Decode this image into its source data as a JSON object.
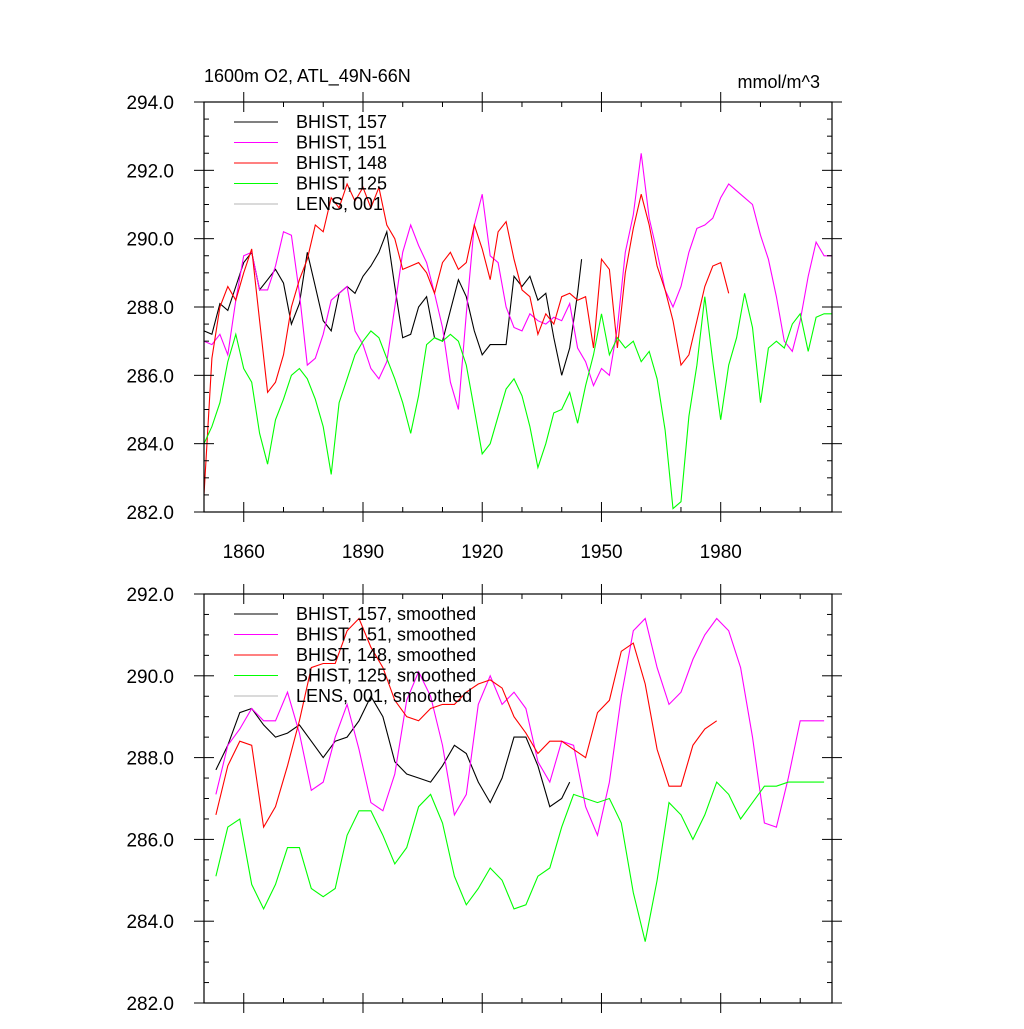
{
  "chart_data": [
    {
      "type": "line",
      "title": "1600m O2, ATL_49N-66N",
      "units": "mmol/m^3",
      "xlim": [
        1850,
        2008
      ],
      "ylim": [
        282.0,
        294.0
      ],
      "x_ticks": [
        1860,
        1890,
        1920,
        1950,
        1980
      ],
      "x_tick_labels": [
        "1860",
        "1890",
        "1920",
        "1950",
        "1980"
      ],
      "y_ticks": [
        282.0,
        284.0,
        286.0,
        288.0,
        290.0,
        292.0,
        294.0
      ],
      "y_tick_labels": [
        "282.0",
        "284.0",
        "286.0",
        "288.0",
        "290.0",
        "292.0",
        "294.0"
      ],
      "grid": false,
      "legend_position": "top-left",
      "series": [
        {
          "name": "BHIST, 157",
          "color": "#000000",
          "x": [
            1850,
            1852,
            1854,
            1856,
            1858,
            1860,
            1862,
            1864,
            1866,
            1868,
            1870,
            1872,
            1874,
            1876,
            1878,
            1880,
            1882,
            1884,
            1886,
            1888,
            1890,
            1892,
            1894,
            1896,
            1898,
            1900,
            1902,
            1904,
            1906,
            1908,
            1910,
            1912,
            1914,
            1916,
            1918,
            1920,
            1922,
            1924,
            1926,
            1928,
            1930,
            1932,
            1934,
            1936,
            1938,
            1940,
            1942,
            1944,
            1945
          ],
          "y": [
            287.3,
            287.2,
            288.1,
            287.9,
            288.6,
            289.3,
            289.6,
            288.5,
            288.8,
            289.1,
            288.7,
            287.5,
            288.1,
            289.6,
            288.6,
            287.6,
            287.3,
            288.4,
            288.6,
            288.4,
            288.9,
            289.2,
            289.6,
            290.2,
            288.6,
            287.1,
            287.2,
            288.0,
            288.3,
            287.1,
            287.0,
            287.9,
            288.8,
            288.3,
            287.3,
            286.6,
            286.9,
            286.9,
            286.9,
            288.9,
            288.6,
            288.9,
            288.2,
            288.4,
            287.1,
            286.0,
            286.8,
            288.4,
            289.4
          ]
        },
        {
          "name": "BHIST, 151",
          "color": "#ff00ff",
          "x": [
            1850,
            1852,
            1854,
            1856,
            1858,
            1860,
            1862,
            1864,
            1866,
            1868,
            1870,
            1872,
            1874,
            1876,
            1878,
            1880,
            1882,
            1884,
            1886,
            1888,
            1890,
            1892,
            1894,
            1896,
            1898,
            1900,
            1902,
            1904,
            1906,
            1908,
            1910,
            1912,
            1914,
            1916,
            1918,
            1920,
            1922,
            1924,
            1926,
            1928,
            1930,
            1932,
            1934,
            1936,
            1938,
            1940,
            1942,
            1944,
            1946,
            1948,
            1950,
            1952,
            1954,
            1956,
            1958,
            1960,
            1962,
            1964,
            1966,
            1968,
            1970,
            1972,
            1974,
            1976,
            1978,
            1980,
            1982,
            1984,
            1986,
            1988,
            1990,
            1992,
            1994,
            1996,
            1998,
            2000,
            2002,
            2004,
            2006,
            2008
          ],
          "y": [
            287.0,
            286.9,
            287.2,
            286.6,
            288.2,
            289.5,
            289.6,
            288.5,
            288.5,
            289.2,
            290.2,
            290.1,
            288.4,
            286.3,
            286.5,
            287.2,
            288.2,
            288.4,
            288.6,
            287.3,
            286.9,
            286.2,
            285.9,
            286.4,
            288.0,
            289.6,
            290.4,
            289.8,
            289.3,
            288.4,
            287.4,
            285.8,
            285.0,
            287.8,
            290.4,
            291.3,
            289.5,
            289.3,
            288.0,
            287.4,
            287.3,
            287.8,
            287.6,
            287.5,
            287.7,
            287.6,
            288.1,
            286.8,
            286.4,
            285.7,
            286.2,
            286.0,
            287.4,
            289.6,
            290.7,
            292.5,
            290.6,
            289.6,
            288.5,
            288.0,
            288.6,
            289.6,
            290.3,
            290.4,
            290.6,
            291.2,
            291.6,
            291.4,
            291.2,
            291.0,
            290.1,
            289.4,
            288.3,
            287.0,
            286.7,
            287.6,
            288.9,
            289.9,
            289.5,
            289.5
          ]
        },
        {
          "name": "BHIST, 148",
          "color": "#ff0000",
          "x": [
            1850,
            1852,
            1854,
            1856,
            1858,
            1860,
            1862,
            1864,
            1866,
            1868,
            1870,
            1872,
            1874,
            1876,
            1878,
            1880,
            1882,
            1884,
            1886,
            1888,
            1890,
            1892,
            1894,
            1896,
            1898,
            1900,
            1902,
            1904,
            1906,
            1908,
            1910,
            1912,
            1914,
            1916,
            1918,
            1920,
            1922,
            1924,
            1926,
            1928,
            1930,
            1932,
            1934,
            1936,
            1938,
            1940,
            1942,
            1944,
            1946,
            1948,
            1950,
            1952,
            1954,
            1956,
            1958,
            1960,
            1962,
            1964,
            1966,
            1968,
            1970,
            1972,
            1974,
            1976,
            1978,
            1980,
            1982
          ],
          "y": [
            282.5,
            286.5,
            288.0,
            288.6,
            288.2,
            289.0,
            289.7,
            287.6,
            285.5,
            285.8,
            286.6,
            288.0,
            288.8,
            289.4,
            290.4,
            290.2,
            291.2,
            290.9,
            291.6,
            291.1,
            291.5,
            290.9,
            291.5,
            290.4,
            290.0,
            289.1,
            289.2,
            289.3,
            289.0,
            288.4,
            289.3,
            289.6,
            289.1,
            289.3,
            290.4,
            289.7,
            288.8,
            290.2,
            290.5,
            289.4,
            288.5,
            288.3,
            287.2,
            287.8,
            287.5,
            288.3,
            288.4,
            288.2,
            288.3,
            286.8,
            289.4,
            289.1,
            286.8,
            289.0,
            290.3,
            291.3,
            290.4,
            289.2,
            288.5,
            287.6,
            286.3,
            286.6,
            287.6,
            288.6,
            289.2,
            289.3,
            288.4
          ]
        },
        {
          "name": "BHIST, 125",
          "color": "#00ff00",
          "x": [
            1850,
            1852,
            1854,
            1856,
            1858,
            1860,
            1862,
            1864,
            1866,
            1868,
            1870,
            1872,
            1874,
            1876,
            1878,
            1880,
            1882,
            1884,
            1886,
            1888,
            1890,
            1892,
            1894,
            1896,
            1898,
            1900,
            1902,
            1904,
            1906,
            1908,
            1910,
            1912,
            1914,
            1916,
            1918,
            1920,
            1922,
            1924,
            1926,
            1928,
            1930,
            1932,
            1934,
            1936,
            1938,
            1940,
            1942,
            1944,
            1946,
            1948,
            1950,
            1952,
            1954,
            1956,
            1958,
            1960,
            1962,
            1964,
            1966,
            1968,
            1970,
            1972,
            1974,
            1976,
            1978,
            1980,
            1982,
            1984,
            1986,
            1988,
            1990,
            1992,
            1994,
            1996,
            1998,
            2000,
            2002,
            2004,
            2006,
            2008
          ],
          "y": [
            284.0,
            284.5,
            285.2,
            286.4,
            287.2,
            286.2,
            285.8,
            284.3,
            283.4,
            284.7,
            285.3,
            286.0,
            286.2,
            285.9,
            285.3,
            284.5,
            283.1,
            285.2,
            285.9,
            286.6,
            287.0,
            287.3,
            287.1,
            286.5,
            285.9,
            285.2,
            284.3,
            285.4,
            286.9,
            287.1,
            287.0,
            287.2,
            287.0,
            286.3,
            285.0,
            283.7,
            284.0,
            284.8,
            285.6,
            285.9,
            285.4,
            284.5,
            283.3,
            284.0,
            284.9,
            285.0,
            285.5,
            284.6,
            285.7,
            286.6,
            287.8,
            286.6,
            287.1,
            286.8,
            287.0,
            286.4,
            286.7,
            285.9,
            284.4,
            282.1,
            282.3,
            284.8,
            286.3,
            288.3,
            286.4,
            284.7,
            286.3,
            287.1,
            288.4,
            287.4,
            285.2,
            286.8,
            287.0,
            286.8,
            287.5,
            287.8,
            286.7,
            287.7,
            287.8,
            287.8
          ]
        },
        {
          "name": "LENS, 001",
          "color": "#b4b4b4",
          "x": [],
          "y": []
        }
      ]
    },
    {
      "type": "line",
      "xlim": [
        1850,
        2008
      ],
      "ylim": [
        282.0,
        292.0
      ],
      "y_ticks": [
        282.0,
        284.0,
        286.0,
        288.0,
        290.0,
        292.0
      ],
      "y_tick_labels": [
        "282.0",
        "284.0",
        "286.0",
        "288.0",
        "290.0",
        "292.0"
      ],
      "grid": false,
      "legend_position": "top-left",
      "series": [
        {
          "name": "BHIST, 157, smoothed",
          "color": "#000000",
          "x": [
            1853,
            1856,
            1859,
            1862,
            1865,
            1868,
            1871,
            1874,
            1877,
            1880,
            1883,
            1886,
            1889,
            1892,
            1895,
            1898,
            1901,
            1904,
            1907,
            1910,
            1913,
            1916,
            1919,
            1922,
            1925,
            1928,
            1931,
            1934,
            1937,
            1940,
            1942
          ],
          "y": [
            287.7,
            288.3,
            289.1,
            289.2,
            288.8,
            288.5,
            288.6,
            288.8,
            288.4,
            288.0,
            288.4,
            288.5,
            288.9,
            289.5,
            289.0,
            287.9,
            287.6,
            287.5,
            287.4,
            287.8,
            288.3,
            288.1,
            287.4,
            286.9,
            287.5,
            288.5,
            288.5,
            287.8,
            286.8,
            287.0,
            287.4
          ]
        },
        {
          "name": "BHIST, 151, smoothed",
          "color": "#ff00ff",
          "x": [
            1853,
            1856,
            1859,
            1862,
            1865,
            1868,
            1871,
            1874,
            1877,
            1880,
            1883,
            1886,
            1889,
            1892,
            1895,
            1898,
            1901,
            1904,
            1907,
            1910,
            1913,
            1916,
            1919,
            1922,
            1925,
            1928,
            1931,
            1934,
            1937,
            1940,
            1943,
            1946,
            1949,
            1952,
            1955,
            1958,
            1961,
            1964,
            1967,
            1970,
            1973,
            1976,
            1979,
            1982,
            1985,
            1988,
            1991,
            1994,
            1997,
            2000,
            2003,
            2006
          ],
          "y": [
            287.1,
            288.3,
            288.7,
            289.2,
            288.9,
            288.9,
            289.6,
            288.6,
            287.2,
            287.4,
            288.5,
            289.3,
            288.2,
            286.9,
            286.7,
            287.6,
            289.4,
            290.1,
            289.5,
            288.3,
            286.6,
            287.1,
            289.3,
            290.0,
            289.3,
            289.6,
            289.2,
            287.9,
            287.4,
            288.4,
            288.3,
            286.8,
            286.1,
            287.4,
            289.5,
            291.1,
            291.4,
            290.2,
            289.3,
            289.6,
            290.4,
            291.0,
            291.4,
            291.1,
            290.2,
            288.5,
            286.4,
            286.3,
            287.5,
            288.9,
            288.9,
            288.9
          ]
        },
        {
          "name": "BHIST, 148, smoothed",
          "color": "#ff0000",
          "x": [
            1853,
            1856,
            1859,
            1862,
            1865,
            1868,
            1871,
            1874,
            1877,
            1880,
            1883,
            1886,
            1889,
            1892,
            1895,
            1898,
            1901,
            1904,
            1907,
            1910,
            1913,
            1916,
            1919,
            1922,
            1925,
            1928,
            1931,
            1934,
            1937,
            1940,
            1943,
            1946,
            1949,
            1952,
            1955,
            1958,
            1961,
            1964,
            1967,
            1970,
            1973,
            1976,
            1979
          ],
          "y": [
            286.6,
            287.8,
            288.4,
            288.3,
            286.3,
            286.8,
            287.8,
            288.9,
            290.2,
            290.3,
            290.3,
            291.1,
            291.4,
            290.7,
            290.2,
            289.4,
            289.0,
            288.9,
            289.2,
            289.3,
            289.3,
            289.6,
            289.8,
            289.9,
            289.7,
            289.0,
            288.6,
            288.1,
            288.4,
            288.4,
            288.2,
            288.0,
            289.1,
            289.4,
            290.6,
            290.8,
            289.8,
            288.2,
            287.3,
            287.3,
            288.3,
            288.7,
            288.9
          ]
        },
        {
          "name": "BHIST, 125, smoothed",
          "color": "#00ff00",
          "x": [
            1853,
            1856,
            1859,
            1862,
            1865,
            1868,
            1871,
            1874,
            1877,
            1880,
            1883,
            1886,
            1889,
            1892,
            1895,
            1898,
            1901,
            1904,
            1907,
            1910,
            1913,
            1916,
            1919,
            1922,
            1925,
            1928,
            1931,
            1934,
            1937,
            1940,
            1943,
            1946,
            1949,
            1952,
            1955,
            1958,
            1961,
            1964,
            1967,
            1970,
            1973,
            1976,
            1979,
            1982,
            1985,
            1988,
            1991,
            1994,
            1997,
            2000,
            2003,
            2006
          ],
          "y": [
            285.1,
            286.3,
            286.5,
            284.9,
            284.3,
            284.9,
            285.8,
            285.8,
            284.8,
            284.6,
            284.8,
            286.1,
            286.7,
            286.7,
            286.1,
            285.4,
            285.8,
            286.8,
            287.1,
            286.4,
            285.1,
            284.4,
            284.8,
            285.3,
            285.0,
            284.3,
            284.4,
            285.1,
            285.3,
            286.3,
            287.1,
            287.0,
            286.9,
            287.0,
            286.4,
            284.7,
            283.5,
            285.0,
            286.9,
            286.6,
            286.0,
            286.6,
            287.4,
            287.1,
            286.5,
            286.9,
            287.3,
            287.3,
            287.4,
            287.4,
            287.4,
            287.4
          ]
        },
        {
          "name": "LENS, 001, smoothed",
          "color": "#b4b4b4",
          "x": [],
          "y": []
        }
      ]
    }
  ]
}
